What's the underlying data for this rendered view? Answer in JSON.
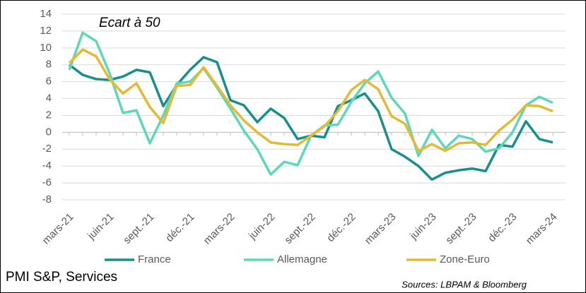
{
  "chart_data": {
    "type": "line",
    "title": "PMI S&P, Services",
    "annotation": "Ecart à 50",
    "source": "Sources: LBPAM & Bloomberg",
    "categories": [
      "mars-21",
      null,
      null,
      "juin-21",
      null,
      null,
      "sept.-21",
      null,
      null,
      "déc.-21",
      null,
      null,
      "mars-22",
      null,
      null,
      "juin-22",
      null,
      null,
      "sept.-22",
      null,
      null,
      "déc.-22",
      null,
      null,
      "mars-23",
      null,
      null,
      "juin-23",
      null,
      null,
      "sept.-23",
      null,
      null,
      "déc.-23",
      null,
      null,
      "mars-24"
    ],
    "series": [
      {
        "name": "France",
        "color": "#178f8f",
        "values": [
          8.0,
          6.8,
          6.3,
          6.2,
          6.6,
          7.4,
          7.1,
          3.1,
          5.6,
          7.4,
          8.9,
          8.3,
          3.8,
          3.2,
          1.2,
          2.8,
          1.7,
          -0.8,
          -0.4,
          -0.6,
          3.1,
          3.8,
          4.6,
          2.5,
          -2.0,
          -2.9,
          -4.0,
          -5.6,
          -4.8,
          -4.5,
          -4.3,
          -4.6,
          -1.5,
          -1.7,
          1.3,
          -0.8,
          -1.2
        ]
      },
      {
        "name": "Allemagne",
        "color": "#5dd8b8",
        "values": [
          7.4,
          11.8,
          10.8,
          7.0,
          2.3,
          2.6,
          -1.3,
          2.0,
          5.8,
          6.0,
          7.6,
          5.3,
          2.8,
          0.2,
          -2.0,
          -5.0,
          -3.5,
          -3.9,
          -0.4,
          0.8,
          0.9,
          3.6,
          5.8,
          7.2,
          4.1,
          2.2,
          -2.8,
          0.3,
          -1.9,
          -0.4,
          -0.8,
          -2.3,
          -1.9,
          0.0,
          3.2,
          4.2,
          3.5
        ]
      },
      {
        "name": "Zone-Euro",
        "color": "#e4b934",
        "values": [
          8.2,
          9.8,
          9.0,
          6.3,
          4.6,
          5.8,
          3.0,
          1.1,
          5.5,
          5.6,
          7.7,
          5.5,
          3.2,
          1.4,
          0.0,
          -1.2,
          -1.4,
          -1.5,
          -0.4,
          0.7,
          2.5,
          5.0,
          6.2,
          5.1,
          1.9,
          1.0,
          -2.2,
          -1.4,
          -2.2,
          -1.3,
          -1.2,
          -1.5,
          0.2,
          1.5,
          3.2,
          3.1,
          2.5
        ]
      }
    ],
    "ylim": [
      -8,
      14
    ],
    "yticks": [
      -8,
      -6,
      -4,
      -2,
      0,
      2,
      4,
      6,
      8,
      10,
      12,
      14
    ],
    "grid": true
  }
}
